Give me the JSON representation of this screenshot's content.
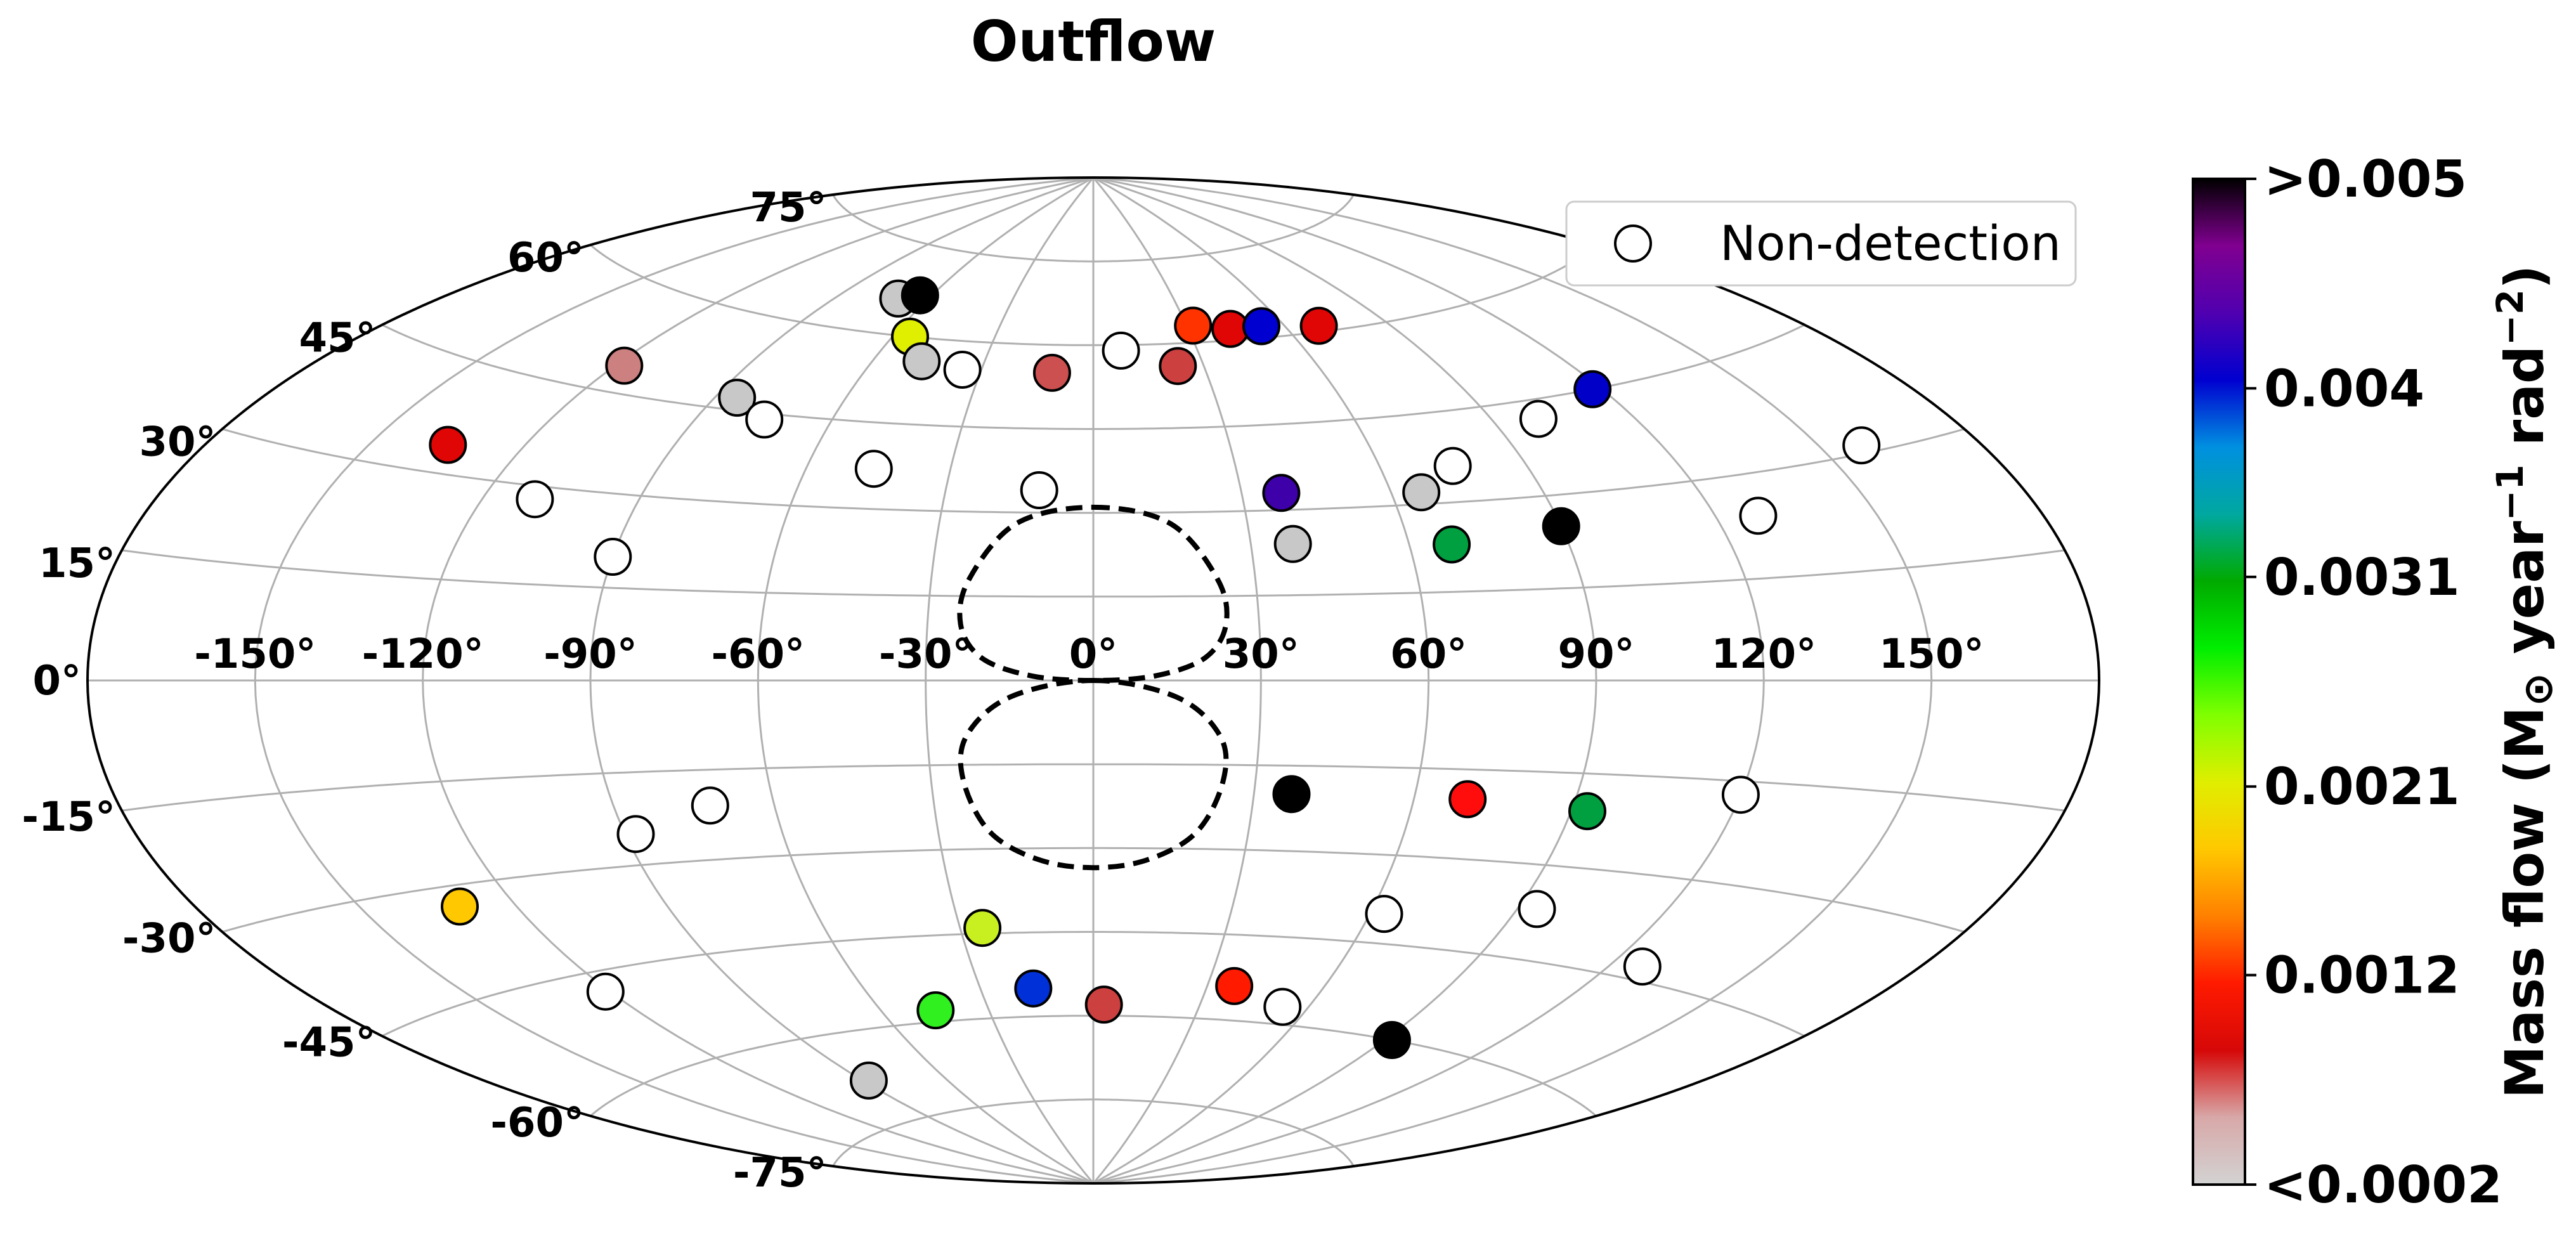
{
  "chart_data": {
    "type": "scatter",
    "projection": "aitoff",
    "title": "Outflow",
    "x_tick_labels": [
      "-150°",
      "-120°",
      "-90°",
      "-60°",
      "-30°",
      "0°",
      "30°",
      "60°",
      "90°",
      "120°",
      "150°"
    ],
    "y_tick_labels": [
      "75°",
      "60°",
      "45°",
      "30°",
      "15°",
      "0°",
      "-15°",
      "-30°",
      "-45°",
      "-60°",
      "-75°"
    ],
    "x_ticks_deg": [
      -150,
      -120,
      -90,
      -60,
      -30,
      0,
      30,
      60,
      90,
      120,
      150
    ],
    "y_ticks_deg": [
      75,
      60,
      45,
      30,
      15,
      0,
      -15,
      -30,
      -45,
      -60,
      -75
    ],
    "grid": true,
    "legend": {
      "label": "Non-detection",
      "placement": "top-right"
    },
    "colorbar": {
      "label_parts": [
        "Mass flow (M",
        "⊙",
        " year",
        "−1",
        " rad",
        "−2",
        ")"
      ],
      "tick_labels": [
        ">0.005",
        "0.004",
        "0.0031",
        "0.0021",
        "0.0012",
        "<0.0002"
      ],
      "tick_values": [
        0.005,
        0.004,
        0.0031,
        0.0021,
        0.0012,
        0.0002
      ],
      "range": [
        0.0002,
        0.005
      ],
      "colors": [
        "#d3d3d3",
        "#d8a8a8",
        "#d60808",
        "#ff1a00",
        "#ff8000",
        "#ffc800",
        "#e0ee00",
        "#80ff00",
        "#00ee00",
        "#00aa00",
        "#00a8a0",
        "#0090e0",
        "#0000d0",
        "#5000b0",
        "#800090",
        "#000000"
      ]
    },
    "regions": [
      {
        "name": "upper-dashed-region",
        "points": [
          [
            0,
            31
          ],
          [
            15,
            28
          ],
          [
            23,
            18
          ],
          [
            24,
            10
          ],
          [
            20,
            4
          ],
          [
            11,
            0.8
          ],
          [
            0,
            0
          ],
          [
            -11,
            0.8
          ],
          [
            -20,
            4
          ],
          [
            -24,
            10
          ],
          [
            -23,
            18
          ],
          [
            -15,
            28
          ]
        ]
      },
      {
        "name": "lower-dashed-region",
        "points": [
          [
            0,
            0
          ],
          [
            15,
            -3
          ],
          [
            23,
            -10
          ],
          [
            24,
            -18
          ],
          [
            20,
            -27
          ],
          [
            11,
            -32
          ],
          [
            0,
            -33.5
          ],
          [
            -11,
            -32
          ],
          [
            -20,
            -27
          ],
          [
            -24,
            -18
          ],
          [
            -23,
            -10
          ],
          [
            -15,
            -3
          ]
        ]
      }
    ],
    "points": [
      {
        "lon": -135,
        "lat": 34,
        "color": "#e00606"
      },
      {
        "lon": -110,
        "lat": 28,
        "color": "#ffffff"
      },
      {
        "lon": -118,
        "lat": 49,
        "color": "#cc8080"
      },
      {
        "lon": -85,
        "lat": 47,
        "color": "#c8c8c8"
      },
      {
        "lon": -75,
        "lat": 44,
        "color": "#ffffff"
      },
      {
        "lon": -90,
        "lat": 20,
        "color": "#ffffff"
      },
      {
        "lon": -70,
        "lat": 66,
        "color": "#c8c8c8"
      },
      {
        "lon": -64,
        "lat": 67,
        "color": "#000000"
      },
      {
        "lon": -55,
        "lat": 60,
        "color": "#e0ee00"
      },
      {
        "lon": -47,
        "lat": 56,
        "color": "#c8c8c8"
      },
      {
        "lon": -35,
        "lat": 55,
        "color": "#ffffff"
      },
      {
        "lon": -46,
        "lat": 37,
        "color": "#ffffff"
      },
      {
        "lon": -11,
        "lat": 55,
        "color": "#cc5050"
      },
      {
        "lon": -11,
        "lat": 34,
        "color": "#ffffff"
      },
      {
        "lon": 8,
        "lat": 59,
        "color": "#ffffff"
      },
      {
        "lon": 23,
        "lat": 56,
        "color": "#cc4040"
      },
      {
        "lon": 32,
        "lat": 63,
        "color": "#ff3300"
      },
      {
        "lon": 43,
        "lat": 62,
        "color": "#e00606"
      },
      {
        "lon": 53,
        "lat": 62,
        "color": "#0000d0"
      },
      {
        "lon": 70,
        "lat": 61,
        "color": "#e00606"
      },
      {
        "lon": 38,
        "lat": 33,
        "color": "#3e00a8"
      },
      {
        "lon": 38,
        "lat": 24,
        "color": "#c8c8c8"
      },
      {
        "lon": 66,
        "lat": 32,
        "color": "#c8c8c8"
      },
      {
        "lon": 75,
        "lat": 36,
        "color": "#ffffff"
      },
      {
        "lon": 68,
        "lat": 23,
        "color": "#00a040"
      },
      {
        "lon": 90,
        "lat": 25,
        "color": "#000000"
      },
      {
        "lon": 100,
        "lat": 42,
        "color": "#ffffff"
      },
      {
        "lon": 118,
        "lat": 45,
        "color": "#0000c8"
      },
      {
        "lon": 128,
        "lat": 24,
        "color": "#ffffff"
      },
      {
        "lon": 158,
        "lat": 31,
        "color": "#ffffff"
      },
      {
        "lon": 37,
        "lat": -20,
        "color": "#000000"
      },
      {
        "lon": 70,
        "lat": -20,
        "color": "#ff0d0d"
      },
      {
        "lon": 93,
        "lat": -21,
        "color": "#00a040"
      },
      {
        "lon": 120,
        "lat": -17,
        "color": "#ffffff"
      },
      {
        "lon": -88,
        "lat": -25,
        "color": "#ffffff"
      },
      {
        "lon": -72,
        "lat": -21,
        "color": "#ffffff"
      },
      {
        "lon": -131,
        "lat": -33,
        "color": "#ffc800"
      },
      {
        "lon": -121,
        "lat": -48,
        "color": "#ffffff"
      },
      {
        "lon": -88,
        "lat": -68,
        "color": "#c8c8c8"
      },
      {
        "lon": -45,
        "lat": -58,
        "color": "#30f020"
      },
      {
        "lon": -25,
        "lat": -44,
        "color": "#c8f020"
      },
      {
        "lon": -16,
        "lat": -55,
        "color": "#0030d8"
      },
      {
        "lon": 3,
        "lat": -58,
        "color": "#cc4040"
      },
      {
        "lon": 37,
        "lat": -54,
        "color": "#ff1a00"
      },
      {
        "lon": 53,
        "lat": -57,
        "color": "#ffffff"
      },
      {
        "lon": 63,
        "lat": -40,
        "color": "#ffffff"
      },
      {
        "lon": 94,
        "lat": -37,
        "color": "#ffffff"
      },
      {
        "lon": 92,
        "lat": -60,
        "color": "#000000"
      },
      {
        "lon": 127,
        "lat": -43,
        "color": "#ffffff"
      }
    ]
  }
}
